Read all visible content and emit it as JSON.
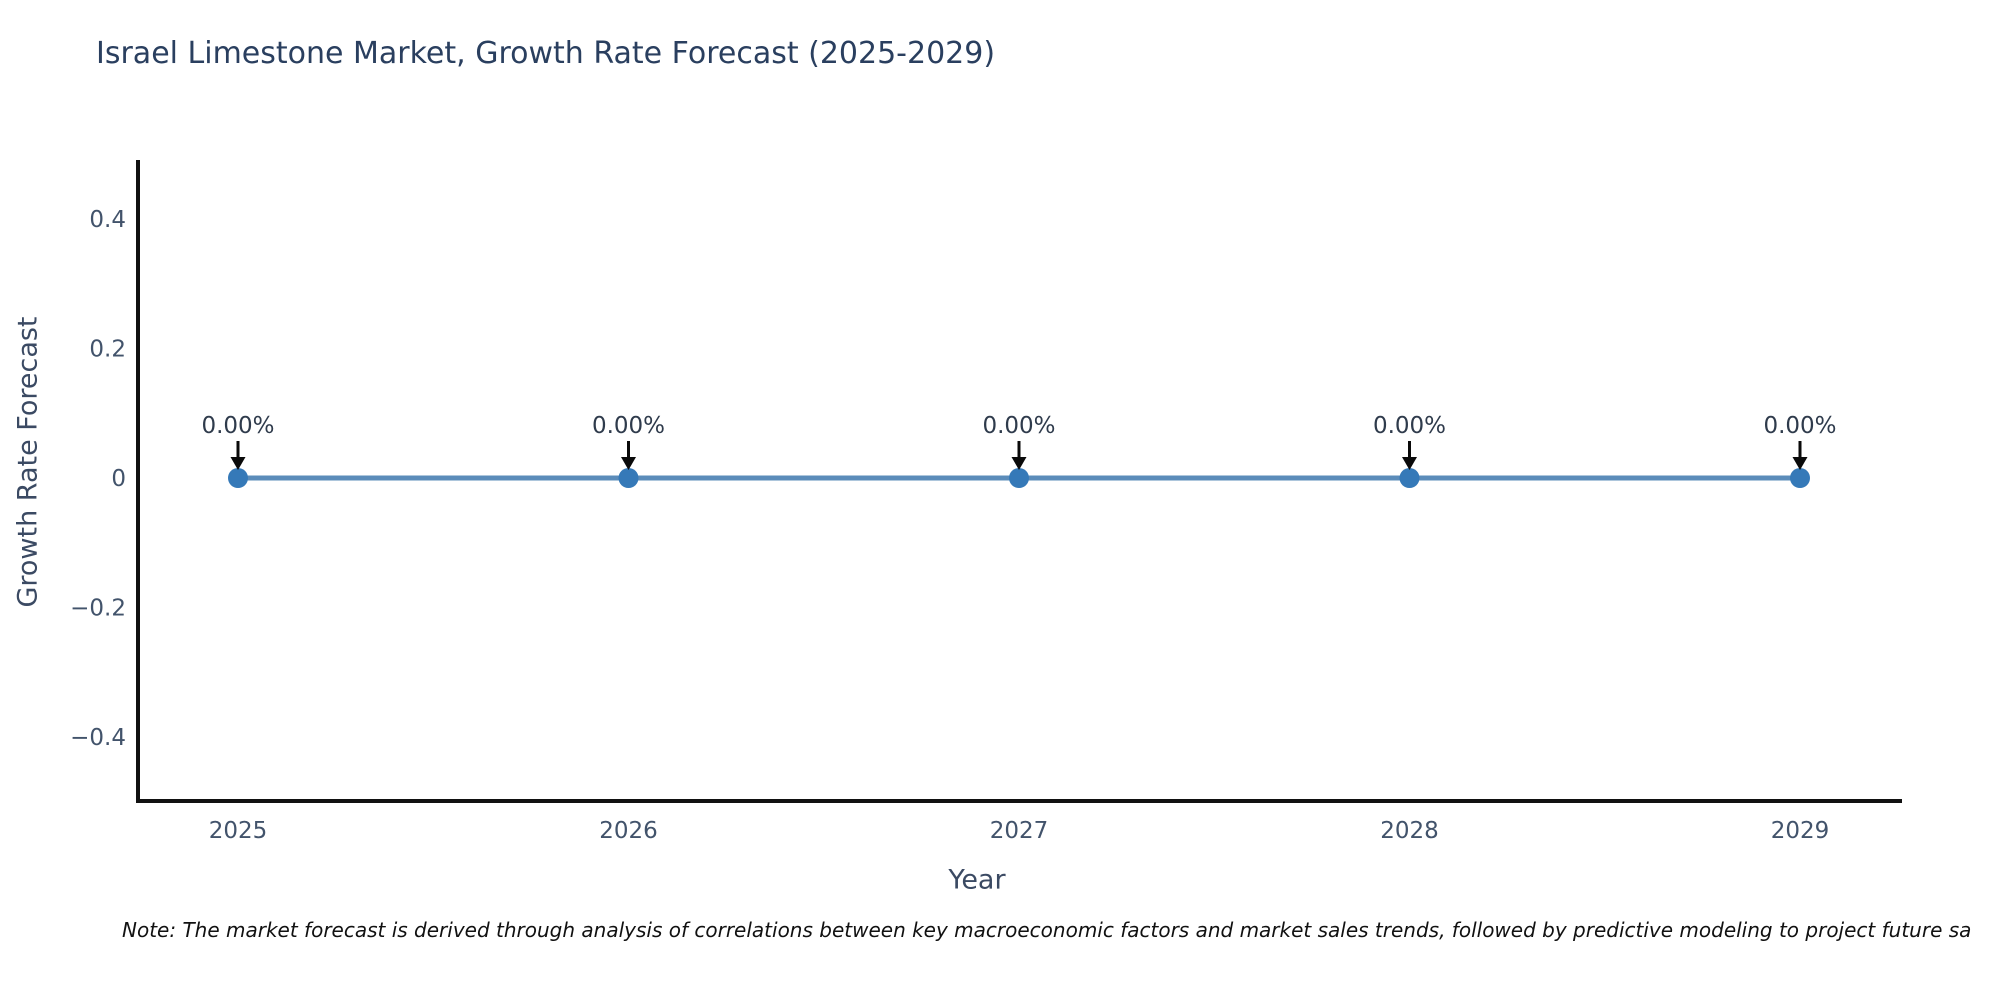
{
  "chart_data": {
    "type": "line",
    "title": "Israel Limestone Market, Growth Rate Forecast (2025-2029)",
    "xlabel": "Year",
    "ylabel": "Growth Rate Forecast",
    "x": [
      2025,
      2026,
      2027,
      2028,
      2029
    ],
    "series": [
      {
        "name": "Growth Rate Forecast",
        "values": [
          0,
          0,
          0,
          0,
          0
        ]
      }
    ],
    "point_labels": [
      "0.00%",
      "0.00%",
      "0.00%",
      "0.00%",
      "0.00%"
    ],
    "yticks": [
      0.4,
      0.2,
      0,
      -0.2,
      -0.4
    ],
    "ytick_labels": [
      "0.4",
      "0.2",
      "0",
      "−0.2",
      "−0.4"
    ],
    "xtick_labels": [
      "2025",
      "2026",
      "2027",
      "2028",
      "2029"
    ],
    "ylim": [
      -0.5,
      0.5
    ],
    "grid": false,
    "legend_position": "none",
    "colors": {
      "line": "#5b8cba",
      "marker": "#3579b8",
      "annotation_arrow": "#0a0a0a",
      "axis": "#111111",
      "title_text": "#2a3f5f",
      "tick_text": "#42536b"
    },
    "note": "Note: The market forecast is derived through analysis of correlations between key macroeconomic factors and market sales trends, followed by predictive modeling to project future sa"
  }
}
